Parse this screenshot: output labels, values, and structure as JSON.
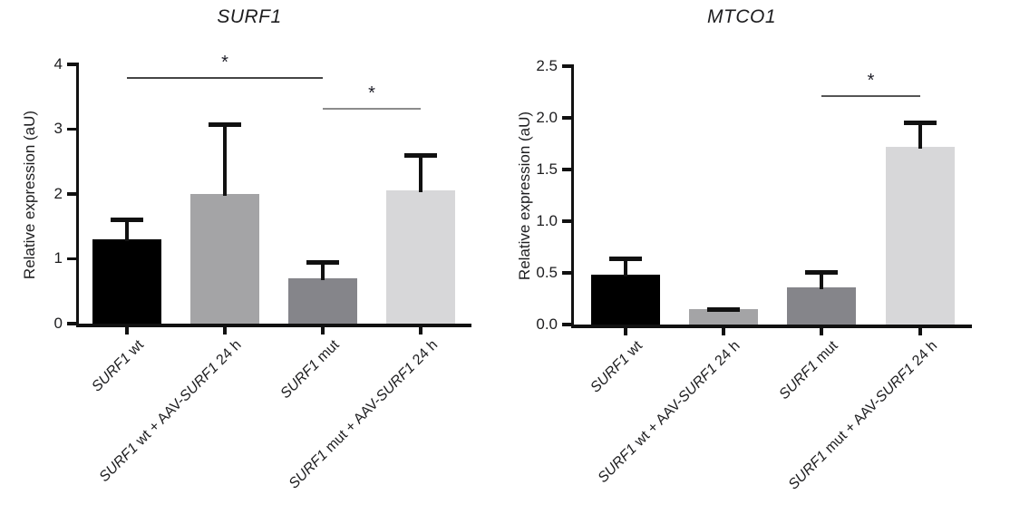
{
  "figure": {
    "background": "#ffffff"
  },
  "colors": {
    "axis": "#111111",
    "text": "#1d1d1f",
    "asterisk": "#1e1e28",
    "error_bar": "#111111"
  },
  "chart_data": [
    {
      "type": "bar",
      "title": "SURF1",
      "ylabel": "Relative expression (aU)",
      "categories": [
        "SURF1 wt",
        "SURF1 wt + AAV-SURF1 24 h",
        "SURF1 mut",
        "SURF1 mut + AAV-SURF1 24 h"
      ],
      "category_segments": [
        [
          {
            "text": "SURF1",
            "italic": true
          },
          {
            "text": " wt",
            "italic": false
          }
        ],
        [
          {
            "text": "SURF1",
            "italic": true
          },
          {
            "text": " wt + AAV-",
            "italic": false
          },
          {
            "text": "SURF1",
            "italic": true
          },
          {
            "text": " 24 h",
            "italic": false
          }
        ],
        [
          {
            "text": "SURF1",
            "italic": true
          },
          {
            "text": " mut",
            "italic": false
          }
        ],
        [
          {
            "text": "SURF1",
            "italic": true
          },
          {
            "text": " mut + AAV-",
            "italic": false
          },
          {
            "text": "SURF1",
            "italic": true
          },
          {
            "text": " 24 h",
            "italic": false
          }
        ]
      ],
      "values": [
        1.3,
        2.0,
        0.7,
        2.05
      ],
      "error_up": [
        0.33,
        1.1,
        0.28,
        0.58
      ],
      "ylim": [
        0,
        4
      ],
      "yticks": [
        "0",
        "1",
        "2",
        "3",
        "4"
      ],
      "grid": false,
      "legend": null,
      "bar_colors": [
        "#000000",
        "#a4a4a6",
        "#85858a",
        "#d7d7d9"
      ],
      "significance": [
        {
          "from": 0,
          "to": 2,
          "y": 3.8,
          "label": "*",
          "color": "#454545"
        },
        {
          "from": 2,
          "to": 3,
          "y": 3.33,
          "label": "*",
          "color": "#8c8c8c"
        }
      ]
    },
    {
      "type": "bar",
      "title": "MTCO1",
      "ylabel": "Relative expression (aU)",
      "categories": [
        "SURF1 wt",
        "SURF1 wt + AAV-SURF1 24 h",
        "SURF1 mut",
        "SURF1 mut + AAV-SURF1 24 h"
      ],
      "category_segments": [
        [
          {
            "text": "SURF1",
            "italic": true
          },
          {
            "text": " wt",
            "italic": false
          }
        ],
        [
          {
            "text": "SURF1",
            "italic": true
          },
          {
            "text": " wt + AAV-",
            "italic": false
          },
          {
            "text": "SURF1",
            "italic": true
          },
          {
            "text": " 24 h",
            "italic": false
          }
        ],
        [
          {
            "text": "SURF1",
            "italic": true
          },
          {
            "text": " mut",
            "italic": false
          }
        ],
        [
          {
            "text": "SURF1",
            "italic": true
          },
          {
            "text": " mut + AAV-",
            "italic": false
          },
          {
            "text": "SURF1",
            "italic": true
          },
          {
            "text": " 24 h",
            "italic": false
          }
        ]
      ],
      "values": [
        0.48,
        0.15,
        0.36,
        1.72
      ],
      "error_up": [
        0.18,
        0.02,
        0.17,
        0.25
      ],
      "ylim": [
        0,
        2.5
      ],
      "yticks": [
        "0.0",
        "0.5",
        "1.0",
        "1.5",
        "2.0",
        "2.5"
      ],
      "grid": false,
      "legend": null,
      "bar_colors": [
        "#000000",
        "#a4a4a6",
        "#85858a",
        "#d7d7d9"
      ],
      "significance": [
        {
          "from": 2,
          "to": 3,
          "y": 2.22,
          "label": "*",
          "color": "#555555"
        }
      ]
    }
  ]
}
